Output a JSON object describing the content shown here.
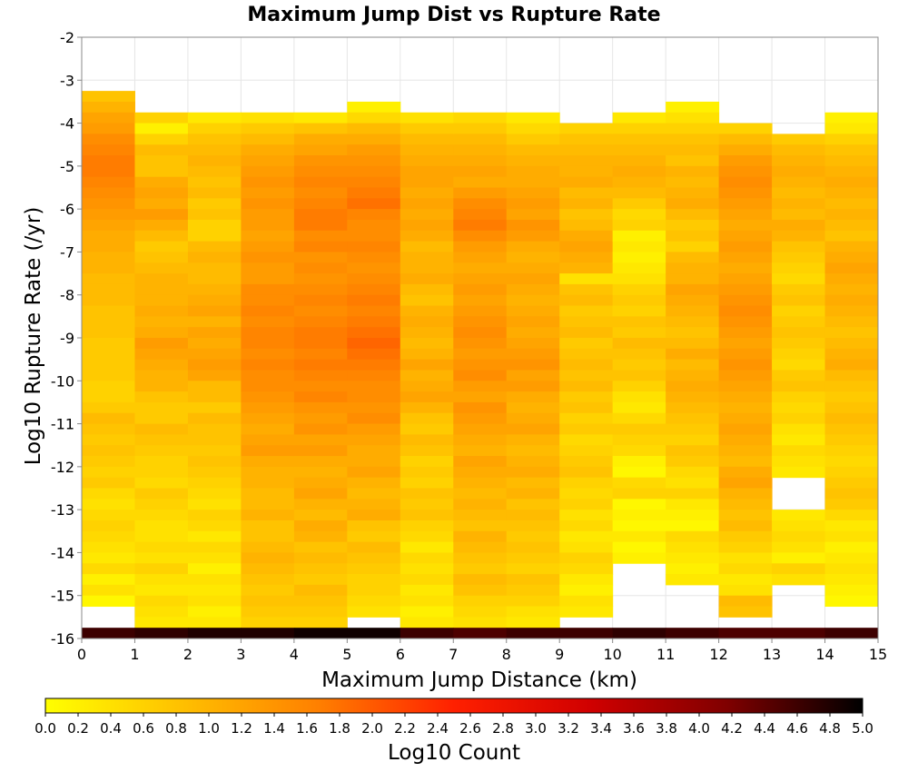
{
  "chart_data": {
    "type": "heatmap",
    "title": "Maximum Jump Dist vs Rupture Rate",
    "xlabel": "Maximum Jump Distance (km)",
    "ylabel": "Log10 Rupture Rate (/yr)",
    "x_range": [
      0,
      15
    ],
    "y_range": [
      -16,
      -2
    ],
    "x_ticks": [
      "0",
      "1",
      "2",
      "3",
      "4",
      "5",
      "6",
      "7",
      "8",
      "9",
      "10",
      "11",
      "12",
      "13",
      "14",
      "15"
    ],
    "y_ticks": [
      "-2",
      "-3",
      "-4",
      "-5",
      "-6",
      "-7",
      "-8",
      "-9",
      "-10",
      "-11",
      "-12",
      "-13",
      "-14",
      "-15",
      "-16"
    ],
    "x_bin_width_km": 1,
    "y_bin_width_log10": 0.25,
    "y_bins_count": 48,
    "columns": [
      {
        "x": 0.5,
        "y_top": -3.25,
        "values": [
          0.8,
          1.0,
          1.2,
          1.3,
          1.5,
          1.6,
          1.7,
          1.7,
          1.6,
          1.5,
          1.4,
          1.3,
          1.2,
          1.1,
          1.1,
          1.0,
          1.0,
          0.9,
          0.9,
          0.9,
          0.8,
          0.8,
          0.8,
          0.7,
          0.7,
          0.7,
          0.7,
          0.6,
          0.6,
          0.7,
          0.9,
          0.8,
          0.7,
          0.8,
          0.7,
          0.6,
          0.7,
          0.5,
          0.4,
          0.5,
          0.6,
          0.5,
          0.4,
          0.3,
          0.5,
          0.2,
          0.4,
          0.1
        ]
      },
      {
        "x": 1.5,
        "y_top": -3.75,
        "values": [
          0.6,
          0.2,
          0.6,
          0.9,
          0.8,
          0.8,
          1.1,
          1.2,
          1.1,
          1.3,
          1.1,
          0.9,
          0.7,
          0.8,
          0.9,
          1.0,
          1.0,
          1.0,
          1.1,
          1.0,
          1.1,
          1.3,
          1.2,
          1.1,
          1.0,
          1.0,
          0.8,
          0.7,
          0.7,
          0.9,
          0.8,
          0.7,
          0.6,
          0.6,
          0.5,
          0.7,
          0.6,
          0.5,
          0.4,
          0.4,
          0.5,
          0.4,
          0.6,
          0.4,
          0.3,
          0.5,
          0.4,
          0.3
        ]
      },
      {
        "x": 2.5,
        "y_top": -3.75,
        "values": [
          0.3,
          0.6,
          0.8,
          0.9,
          1.0,
          0.9,
          0.8,
          0.9,
          0.7,
          0.8,
          0.6,
          0.6,
          0.9,
          1.0,
          0.9,
          0.9,
          1.0,
          1.1,
          1.2,
          1.0,
          1.2,
          1.1,
          1.2,
          1.3,
          1.2,
          0.9,
          0.9,
          0.7,
          0.9,
          0.8,
          0.8,
          0.7,
          0.8,
          0.7,
          0.6,
          0.5,
          0.4,
          0.6,
          0.5,
          0.3,
          0.5,
          0.4,
          0.2,
          0.4,
          0.3,
          0.4,
          0.2,
          0.3
        ]
      },
      {
        "x": 3.5,
        "y_top": -3.75,
        "values": [
          0.4,
          0.7,
          0.9,
          1.1,
          1.2,
          1.3,
          1.4,
          1.3,
          1.4,
          1.3,
          1.3,
          1.2,
          1.3,
          1.4,
          1.3,
          1.3,
          1.5,
          1.5,
          1.6,
          1.5,
          1.6,
          1.6,
          1.5,
          1.6,
          1.5,
          1.5,
          1.4,
          1.3,
          1.2,
          1.1,
          1.2,
          1.3,
          1.1,
          1.0,
          1.0,
          0.9,
          0.9,
          1.0,
          0.8,
          0.8,
          0.9,
          1.0,
          0.9,
          0.8,
          0.7,
          0.8,
          0.7,
          0.6
        ]
      },
      {
        "x": 4.5,
        "y_top": -3.75,
        "values": [
          0.3,
          0.8,
          1.1,
          1.2,
          1.4,
          1.5,
          1.6,
          1.5,
          1.6,
          1.7,
          1.7,
          1.5,
          1.6,
          1.4,
          1.5,
          1.4,
          1.5,
          1.6,
          1.5,
          1.6,
          1.7,
          1.7,
          1.6,
          1.7,
          1.6,
          1.5,
          1.6,
          1.4,
          1.3,
          1.4,
          1.2,
          1.3,
          1.1,
          1.0,
          1.1,
          1.2,
          1.0,
          0.9,
          1.1,
          1.0,
          0.8,
          0.9,
          0.8,
          0.7,
          0.9,
          0.8,
          0.7,
          0.6
        ]
      },
      {
        "x": 5.5,
        "y_top": -3.5,
        "values": [
          0.2,
          0.5,
          0.9,
          1.1,
          1.3,
          1.4,
          1.5,
          1.6,
          1.7,
          1.8,
          1.6,
          1.5,
          1.5,
          1.6,
          1.5,
          1.4,
          1.5,
          1.6,
          1.7,
          1.6,
          1.7,
          1.8,
          1.9,
          1.8,
          1.7,
          1.6,
          1.5,
          1.5,
          1.4,
          1.5,
          1.3,
          1.2,
          1.1,
          1.1,
          1.2,
          1.0,
          0.9,
          1.0,
          1.1,
          0.8,
          0.7,
          0.9,
          0.8,
          0.7,
          0.6,
          0.6,
          0.5,
          0.4
        ]
      },
      {
        "x": 6.5,
        "y_top": -3.75,
        "values": [
          0.4,
          0.7,
          0.9,
          1.0,
          1.1,
          1.2,
          1.2,
          1.1,
          1.2,
          1.1,
          1.2,
          1.1,
          0.9,
          1.0,
          1.0,
          1.1,
          0.9,
          0.8,
          1.0,
          1.1,
          1.0,
          0.9,
          1.0,
          1.2,
          1.0,
          1.1,
          1.2,
          1.0,
          0.8,
          0.7,
          0.9,
          0.8,
          0.6,
          0.7,
          0.6,
          0.8,
          0.7,
          0.8,
          0.6,
          0.5,
          0.3,
          0.5,
          0.4,
          0.5,
          0.3,
          0.4,
          0.2,
          0.3
        ]
      },
      {
        "x": 7.5,
        "y_top": -3.75,
        "values": [
          0.5,
          0.7,
          0.9,
          1.0,
          1.1,
          1.2,
          1.1,
          1.3,
          1.5,
          1.6,
          1.7,
          1.5,
          1.3,
          1.2,
          1.1,
          1.2,
          1.3,
          1.2,
          1.3,
          1.4,
          1.5,
          1.4,
          1.3,
          1.4,
          1.5,
          1.3,
          1.2,
          1.4,
          1.3,
          1.2,
          1.1,
          1.0,
          1.2,
          1.1,
          1.0,
          0.9,
          1.0,
          0.9,
          0.8,
          1.0,
          0.9,
          0.8,
          0.7,
          0.9,
          0.8,
          0.6,
          0.5,
          0.4
        ]
      },
      {
        "x": 8.5,
        "y_top": -3.75,
        "values": [
          0.3,
          0.5,
          0.7,
          0.9,
          1.0,
          1.1,
          1.1,
          1.2,
          1.3,
          1.2,
          1.4,
          1.3,
          1.1,
          1.0,
          1.1,
          1.2,
          1.1,
          1.0,
          1.1,
          1.2,
          1.1,
          1.2,
          1.3,
          1.4,
          1.2,
          1.3,
          1.1,
          1.0,
          1.1,
          1.2,
          1.0,
          0.9,
          1.0,
          1.1,
          0.9,
          1.0,
          0.8,
          0.9,
          0.8,
          0.7,
          0.8,
          0.7,
          0.6,
          0.8,
          0.7,
          0.6,
          0.4,
          0.3
        ]
      },
      {
        "x": 9.5,
        "y_top": -4.0,
        "values": [
          0.6,
          0.8,
          0.9,
          1.0,
          1.0,
          1.1,
          0.9,
          1.0,
          0.8,
          0.9,
          1.1,
          1.2,
          1.1,
          1.0,
          0.4,
          0.8,
          0.9,
          0.7,
          0.8,
          0.9,
          0.7,
          0.8,
          0.9,
          0.8,
          0.9,
          0.7,
          0.8,
          0.6,
          0.7,
          0.5,
          0.6,
          0.7,
          0.8,
          0.6,
          0.5,
          0.6,
          0.4,
          0.5,
          0.3,
          0.4,
          0.6,
          0.5,
          0.3,
          0.2,
          0.4,
          0.3
        ]
      },
      {
        "x": 10.5,
        "y_top": -3.75,
        "values": [
          0.3,
          0.6,
          0.8,
          0.9,
          1.0,
          1.1,
          1.0,
          0.9,
          0.7,
          0.5,
          0.6,
          0.2,
          0.3,
          0.2,
          0.3,
          0.4,
          0.6,
          0.7,
          0.6,
          0.8,
          0.7,
          0.9,
          0.8,
          0.7,
          0.8,
          0.6,
          0.4,
          0.3,
          0.5,
          0.7,
          0.6,
          0.5,
          0.2,
          0.1,
          0.5,
          0.6,
          0.1,
          0.2,
          0.1,
          0.3,
          0.1,
          0.2
        ]
      },
      {
        "x": 11.5,
        "y_top": -3.5,
        "values": [
          0.2,
          0.4,
          0.6,
          0.8,
          0.9,
          0.8,
          1.0,
          0.9,
          1.0,
          1.1,
          0.9,
          0.7,
          0.8,
          0.6,
          0.9,
          1.0,
          1.0,
          1.2,
          1.1,
          1.0,
          0.9,
          0.8,
          0.9,
          1.1,
          0.9,
          1.0,
          1.1,
          1.0,
          0.9,
          0.8,
          0.7,
          0.6,
          0.8,
          0.7,
          0.5,
          0.4,
          0.6,
          0.3,
          0.2,
          0.1,
          0.5,
          0.4,
          0.3,
          0.2,
          0.3
        ]
      },
      {
        "x": 12.5,
        "y_top": -4.0,
        "values": [
          0.6,
          0.9,
          1.1,
          1.3,
          1.4,
          1.5,
          1.4,
          1.3,
          1.2,
          1.1,
          1.2,
          1.3,
          1.2,
          1.1,
          1.2,
          1.3,
          1.4,
          1.5,
          1.4,
          1.3,
          1.2,
          1.3,
          1.4,
          1.3,
          1.2,
          1.1,
          1.0,
          1.1,
          1.2,
          1.1,
          1.0,
          0.9,
          1.1,
          1.2,
          1.0,
          0.9,
          0.8,
          0.9,
          0.7,
          0.6,
          0.4,
          0.5,
          0.3,
          0.4,
          0.9,
          0.8
        ]
      },
      {
        "x": 13.5,
        "y_top": -4.25,
        "values": [
          0.7,
          0.9,
          1.0,
          1.1,
          1.0,
          0.9,
          1.0,
          0.9,
          1.1,
          1.0,
          0.8,
          0.7,
          0.6,
          0.5,
          0.7,
          0.8,
          0.6,
          0.7,
          0.8,
          0.7,
          0.6,
          0.5,
          0.7,
          0.8,
          0.6,
          0.5,
          0.6,
          0.4,
          0.3,
          0.5,
          0.4,
          0.3,
          null,
          null,
          null,
          0.3,
          0.4,
          0.5,
          0.4,
          0.2,
          0.6,
          0.4
        ]
      },
      {
        "x": 14.5,
        "y_top": -3.75,
        "values": [
          0.2,
          0.3,
          0.6,
          0.8,
          0.9,
          1.0,
          1.1,
          1.0,
          0.9,
          1.0,
          0.9,
          0.8,
          1.0,
          1.1,
          1.2,
          1.1,
          1.0,
          1.1,
          1.0,
          0.9,
          0.8,
          0.9,
          1.0,
          1.1,
          0.9,
          0.8,
          0.7,
          0.8,
          0.9,
          0.8,
          0.7,
          0.6,
          0.5,
          0.6,
          0.7,
          0.8,
          0.7,
          0.5,
          0.3,
          0.4,
          0.2,
          0.3,
          0.4,
          0.3,
          0.2,
          0.1
        ]
      }
    ],
    "bottom_row": {
      "y": -15.875,
      "values": [
        4.6,
        4.7,
        4.8,
        4.8,
        4.9,
        4.9,
        4.6,
        4.5,
        4.6,
        4.6,
        4.7,
        4.6,
        4.5,
        4.5,
        4.6
      ]
    },
    "colorbar": {
      "label": "Log10 Count",
      "range": [
        0,
        5
      ],
      "ticks": [
        "0.0",
        "0.2",
        "0.4",
        "0.6",
        "0.8",
        "1.0",
        "1.2",
        "1.4",
        "1.6",
        "1.8",
        "2.0",
        "2.2",
        "2.4",
        "2.6",
        "2.8",
        "3.0",
        "3.2",
        "3.4",
        "3.6",
        "3.8",
        "4.0",
        "4.2",
        "4.4",
        "4.6",
        "4.8",
        "5.0"
      ],
      "colors": [
        "#ffff00",
        "#ffc000",
        "#ff8000",
        "#ff2000",
        "#d00000",
        "#800000",
        "#000000"
      ]
    },
    "grid": true,
    "legend": "bottom colorbar"
  }
}
